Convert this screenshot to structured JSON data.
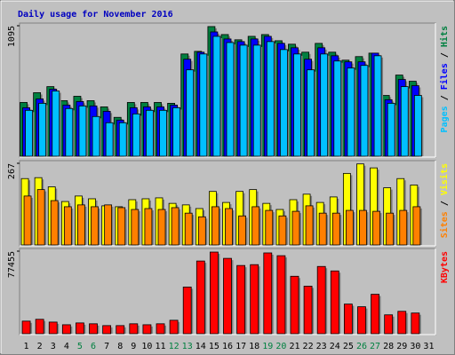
{
  "chart_data": {
    "type": "bar",
    "title": "Daily usage for November 2016",
    "title_color": "#0000c0",
    "categories": [
      "1",
      "2",
      "3",
      "4",
      "5",
      "6",
      "7",
      "8",
      "9",
      "10",
      "11",
      "12",
      "13",
      "14",
      "15",
      "16",
      "17",
      "18",
      "19",
      "20",
      "21",
      "22",
      "23",
      "24",
      "25",
      "26",
      "27",
      "28",
      "29",
      "30",
      "31"
    ],
    "category_colors": [
      "#000000",
      "#000000",
      "#000000",
      "#000000",
      "#008040",
      "#008040",
      "#000000",
      "#000000",
      "#000000",
      "#000000",
      "#000000",
      "#008040",
      "#008040",
      "#000000",
      "#000000",
      "#000000",
      "#000000",
      "#000000",
      "#008040",
      "#008040",
      "#000000",
      "#000000",
      "#000000",
      "#000000",
      "#000000",
      "#008040",
      "#008040",
      "#000000",
      "#000000",
      "#000000",
      "#000000"
    ],
    "legend_separator": " / ",
    "panels": [
      {
        "ylim": [
          0,
          1095
        ],
        "yticks": [
          1095
        ],
        "series": [
          {
            "name": "Hits",
            "color": "#008040",
            "values": [
              451,
              533,
              584,
              466,
              503,
              466,
              414,
              326,
              451,
              451,
              451,
              444,
              858,
              880,
              1088,
              1021,
              977,
              1006,
              1021,
              969,
              940,
              873,
              947,
              873,
              806,
              836,
              865,
              510,
              681,
              629,
              null
            ]
          },
          {
            "name": "Files",
            "color": "#0000ff",
            "values": [
              407,
              481,
              562,
              429,
              459,
              422,
              377,
              303,
              407,
              414,
              414,
              429,
              814,
              873,
              1043,
              984,
              962,
              984,
              1006,
              947,
              910,
              814,
              910,
              843,
              792,
              792,
              865,
              474,
              644,
              592,
              null
            ]
          },
          {
            "name": "Pages",
            "color": "#00c0ff",
            "values": [
              385,
              444,
              547,
              400,
              422,
              333,
              281,
              281,
              355,
              385,
              385,
              407,
              725,
              858,
              1006,
              954,
              932,
              932,
              962,
              895,
              858,
              725,
              858,
              799,
              740,
              762,
              843,
              444,
              584,
              510,
              null
            ]
          }
        ]
      },
      {
        "ylim": [
          0,
          267
        ],
        "yticks": [
          267
        ],
        "series": [
          {
            "name": "Visits",
            "color": "#ffff00",
            "values": [
              217,
              220,
              190,
              142,
              160,
              151,
              128,
              125,
              148,
              151,
              154,
              136,
              131,
              119,
              175,
              139,
              175,
              181,
              136,
              116,
              148,
              166,
              139,
              157,
              234,
              265,
              252,
              187,
              217,
              196,
              null
            ]
          },
          {
            "name": "Sites",
            "color": "#ff8000",
            "values": [
              160,
              181,
              145,
              125,
              131,
              125,
              131,
              122,
              116,
              119,
              116,
              122,
              104,
              92,
              125,
              119,
              95,
              125,
              113,
              95,
              110,
              128,
              104,
              104,
              113,
              113,
              110,
              104,
              113,
              125,
              null
            ]
          }
        ]
      },
      {
        "ylim": [
          0,
          77455
        ],
        "yticks": [
          77455
        ],
        "series": [
          {
            "name": "KBytes",
            "color": "#ff0000",
            "values": [
              11800,
              13500,
              10900,
              8400,
              10100,
              9300,
              7600,
              7600,
              9300,
              8400,
              9300,
              12600,
              43800,
              68200,
              76600,
              70700,
              64000,
              64800,
              75800,
              73200,
              53900,
              44600,
              63100,
              58900,
              27800,
              25300,
              37000,
              17700,
              21000,
              19400,
              null
            ]
          }
        ]
      }
    ]
  }
}
